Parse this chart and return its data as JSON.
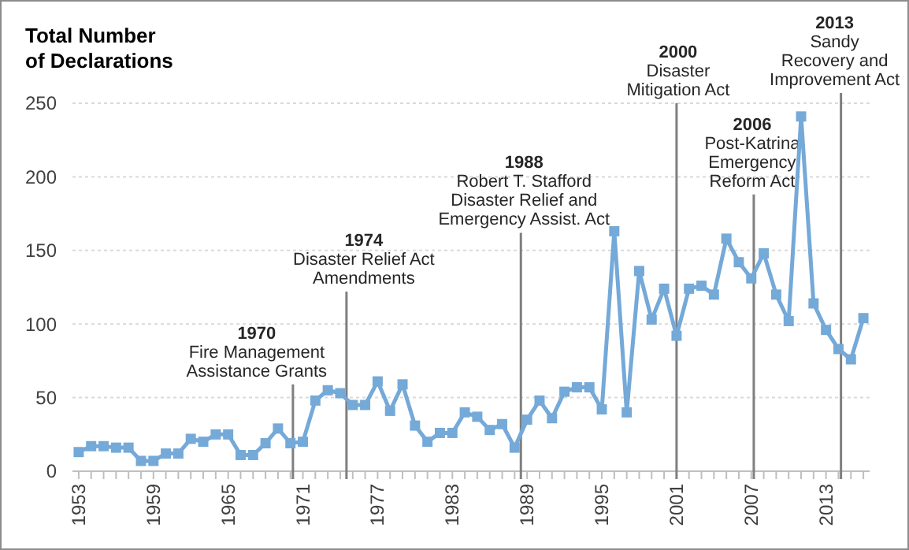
{
  "chart_data": {
    "type": "line",
    "title": "Total Number\nof Declarations",
    "x": [
      1953,
      1954,
      1955,
      1956,
      1957,
      1958,
      1959,
      1960,
      1961,
      1962,
      1963,
      1964,
      1965,
      1966,
      1967,
      1968,
      1969,
      1970,
      1971,
      1972,
      1973,
      1974,
      1975,
      1976,
      1977,
      1978,
      1979,
      1980,
      1981,
      1982,
      1983,
      1984,
      1985,
      1986,
      1987,
      1988,
      1989,
      1990,
      1991,
      1992,
      1993,
      1994,
      1995,
      1996,
      1997,
      1998,
      1999,
      2000,
      2001,
      2002,
      2003,
      2004,
      2005,
      2006,
      2007,
      2008,
      2009,
      2010,
      2011,
      2012,
      2013,
      2014,
      2015,
      2016
    ],
    "series": [
      {
        "color": "#74a9d8",
        "values": [
          13,
          17,
          17,
          16,
          16,
          7,
          7,
          12,
          12,
          22,
          20,
          25,
          25,
          11,
          11,
          19,
          29,
          19,
          20,
          48,
          55,
          53,
          45,
          45,
          61,
          41,
          59,
          31,
          20,
          26,
          26,
          40,
          37,
          28,
          32,
          16,
          35,
          48,
          36,
          54,
          57,
          57,
          42,
          163,
          40,
          136,
          103,
          124,
          92,
          124,
          126,
          120,
          158,
          142,
          131,
          148,
          120,
          102,
          241,
          114,
          96,
          83,
          76,
          104
        ]
      }
    ],
    "xlim": [
      1952.5,
      2016.5
    ],
    "xticks": [
      1953,
      1959,
      1965,
      1971,
      1977,
      1983,
      1989,
      1995,
      2001,
      2007,
      2013
    ],
    "ylim": [
      0,
      250
    ],
    "yticks": [
      0,
      50,
      100,
      150,
      200,
      250
    ],
    "grid": "y",
    "marker": "square",
    "line_style": "solid",
    "ref_lines": [
      {
        "axis": "x",
        "value": 1970.2,
        "label": "1970\nFire Management\nAssistance Grants",
        "color": "#7f7f7f"
      },
      {
        "axis": "x",
        "value": 1974.5,
        "label": "1974\nDisaster Relief Act\nAmendments",
        "color": "#7f7f7f"
      },
      {
        "axis": "x",
        "value": 1988.5,
        "label": "1988\nRobert T. Stafford\nDisaster Relief and\nEmergency Assist. Act",
        "color": "#7f7f7f"
      },
      {
        "axis": "x",
        "value": 2001,
        "label": "2000\nDisaster\nMitigation Act",
        "color": "#7f7f7f"
      },
      {
        "axis": "x",
        "value": 2007.2,
        "label": "2006\nPost-Katrina\nEmergency\nReform Act",
        "color": "#7f7f7f"
      },
      {
        "axis": "x",
        "value": 2014.2,
        "label": "2013\nSandy\nRecovery and\nImprovement Act",
        "color": "#7f7f7f"
      }
    ]
  }
}
